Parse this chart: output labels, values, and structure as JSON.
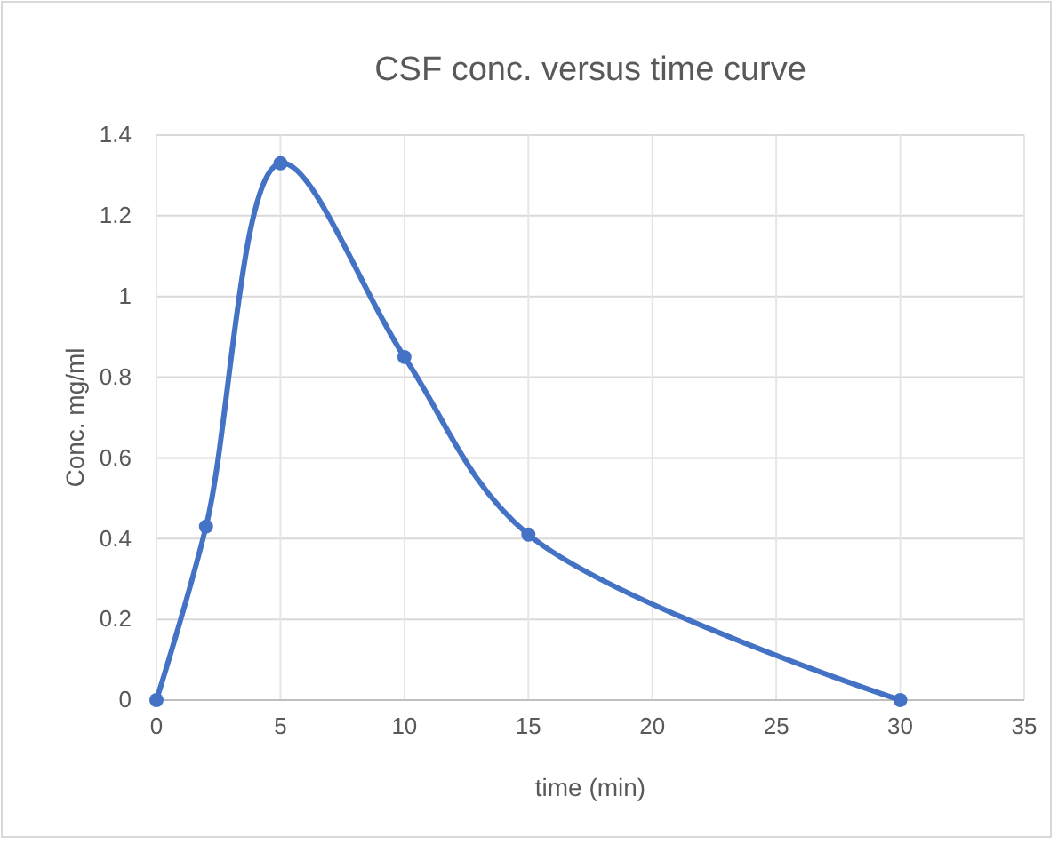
{
  "chart_data": {
    "type": "line",
    "title": "CSF conc. versus time curve",
    "xlabel": "time (min)",
    "ylabel": "Conc. mg/ml",
    "x": [
      0,
      2,
      5,
      10,
      15,
      30
    ],
    "series": [
      {
        "color": "#4472c4",
        "values": [
          0,
          0.43,
          1.33,
          0.85,
          0.41,
          0
        ]
      }
    ],
    "xlim": [
      0,
      35
    ],
    "xticks": [
      0,
      5,
      10,
      15,
      20,
      25,
      30,
      35
    ],
    "ylim": [
      0,
      1.4
    ],
    "yticks": [
      0,
      0.2,
      0.4,
      0.6,
      0.8,
      1,
      1.2,
      1.4
    ],
    "grid": true,
    "marker": "circle",
    "line_style": "solid"
  }
}
